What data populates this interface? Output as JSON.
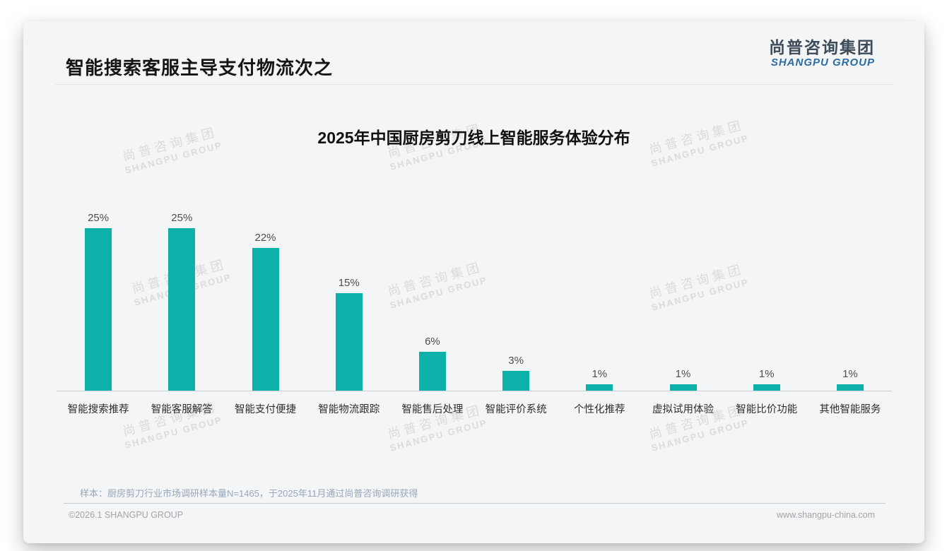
{
  "page": {
    "header_title": "智能搜索客服主导支付物流次之",
    "logo": {
      "cn": "尚普咨询集团",
      "en": "SHANGPU GROUP"
    },
    "watermark": {
      "cn": "尚普咨询集团",
      "en": "SHANGPU GROUP"
    },
    "footnote": "样本：厨房剪刀行业市场调研样本量N=1465，于2025年11月通过尚普咨询调研获得",
    "footer": {
      "left": "©2026.1 SHANGPU GROUP",
      "right": "www.shangpu-china.com"
    }
  },
  "colors": {
    "bar_teal": "#0db1aa",
    "logo_dark": "#3e4b59",
    "logo_blue": "#2d6ba3",
    "card_bg": "#f4f5f6"
  },
  "chart_data": {
    "type": "bar",
    "title": "2025年中国厨房剪刀线上智能服务体验分布",
    "categories": [
      "智能搜索推荐",
      "智能客服解答",
      "智能支付便捷",
      "智能物流跟踪",
      "智能售后处理",
      "智能评价系统",
      "个性化推荐",
      "虚拟试用体验",
      "智能比价功能",
      "其他智能服务"
    ],
    "values": [
      25,
      25,
      22,
      15,
      6,
      3,
      1,
      1,
      1,
      1
    ],
    "value_labels": [
      "25%",
      "25%",
      "22%",
      "15%",
      "6%",
      "3%",
      "1%",
      "1%",
      "1%",
      "1%"
    ],
    "unit": "%",
    "bar_color": "#0db1aa",
    "xlabel": "",
    "ylabel": "",
    "ylim": [
      0,
      27
    ],
    "grid": false,
    "legend": null,
    "data_labels_position": "above-bars"
  }
}
